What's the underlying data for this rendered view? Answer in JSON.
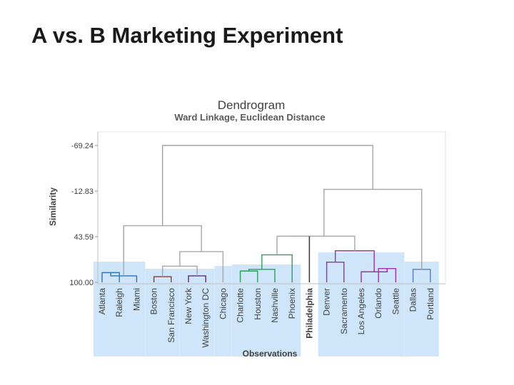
{
  "slide": {
    "title": "A vs. B Marketing Experiment"
  },
  "chart_data": {
    "type": "dendrogram",
    "title": "Dendrogram",
    "subtitle": "Ward Linkage, Euclidean Distance",
    "xlabel": "Observations",
    "ylabel": "Similarity",
    "yticks": [
      "-69.24",
      "-12.83",
      "43.59",
      "100.00"
    ],
    "ylim": [
      -69.24,
      100.0
    ],
    "grid": false,
    "leaves": [
      "Atlanta",
      "Raleigh",
      "Miami",
      "Boston",
      "San Francisco",
      "New York",
      "Washington DC",
      "Chicago",
      "Charlotte",
      "Houston",
      "Nashville",
      "Phoenix",
      "Philadelphia",
      "Denver",
      "Sacramento",
      "Los Angeles",
      "Orlando",
      "Seattle",
      "Dallas",
      "Portland"
    ],
    "clusters": [
      {
        "name": "",
        "members": [
          "Atlanta",
          "Raleigh",
          "Miami"
        ],
        "color": "#2e75b6"
      },
      {
        "name": "",
        "members": [
          "Boston",
          "San Francisco"
        ],
        "color": "#8c3a3a"
      },
      {
        "name": "",
        "members": [
          "New York",
          "Washington DC"
        ],
        "color": "#5b2a86"
      },
      {
        "name": "",
        "members": [
          "Chicago"
        ],
        "color": "#8c3a3a"
      },
      {
        "name": "",
        "members": [
          "Charlotte",
          "Houston",
          "Nashville",
          "Phoenix"
        ],
        "color": "#2e9e5b"
      },
      {
        "name": "",
        "members": [
          "Philadelphia"
        ],
        "color": "#999999"
      },
      {
        "name": "",
        "members": [
          "Denver",
          "Sacramento",
          "Los Angeles",
          "Orlando",
          "Seattle"
        ],
        "color": "#9b30a8"
      },
      {
        "name": "",
        "members": [
          "Dallas",
          "Portland"
        ],
        "color": "#5a7bbf"
      }
    ],
    "merges": [
      {
        "id": "m1",
        "children": [
          "Atlanta",
          "Raleigh"
        ],
        "similarity": 88
      },
      {
        "id": "m2",
        "children": [
          "m1",
          "Miami"
        ],
        "similarity": 92
      },
      {
        "id": "m3",
        "children": [
          "Boston",
          "San Francisco"
        ],
        "similarity": 93
      },
      {
        "id": "m4",
        "children": [
          "New York",
          "Washington DC"
        ],
        "similarity": 92
      },
      {
        "id": "m5",
        "children": [
          "m3",
          "m4"
        ],
        "similarity": 80
      },
      {
        "id": "m6",
        "children": [
          "m5",
          "Chicago"
        ],
        "similarity": 62
      },
      {
        "id": "m7",
        "children": [
          "Charlotte",
          "Houston"
        ],
        "similarity": 86
      },
      {
        "id": "m8",
        "children": [
          "m7",
          "Nashville"
        ],
        "similarity": 84
      },
      {
        "id": "m9",
        "children": [
          "m8",
          "Phoenix"
        ],
        "similarity": 66
      },
      {
        "id": "m10",
        "children": [
          "Denver",
          "Sacramento"
        ],
        "similarity": 75
      },
      {
        "id": "m11",
        "children": [
          "Orlando",
          "Seattle"
        ],
        "similarity": 83
      },
      {
        "id": "m12",
        "children": [
          "Los Angeles",
          "m11"
        ],
        "similarity": 87
      },
      {
        "id": "m13",
        "children": [
          "m10",
          "m12"
        ],
        "similarity": 61
      },
      {
        "id": "m14",
        "children": [
          "Dallas",
          "Portland"
        ],
        "similarity": 84
      },
      {
        "id": "m15",
        "children": [
          "m2",
          "m6"
        ],
        "similarity": 30
      },
      {
        "id": "m16",
        "children": [
          "m9",
          "Philadelphia"
        ],
        "similarity": 43
      },
      {
        "id": "m17",
        "children": [
          "m16",
          "m13"
        ],
        "similarity": 43
      },
      {
        "id": "m18",
        "children": [
          "m17",
          "m14"
        ],
        "similarity": -15
      },
      {
        "id": "m19",
        "children": [
          "m15",
          "m18"
        ],
        "similarity": -69.24
      }
    ]
  }
}
